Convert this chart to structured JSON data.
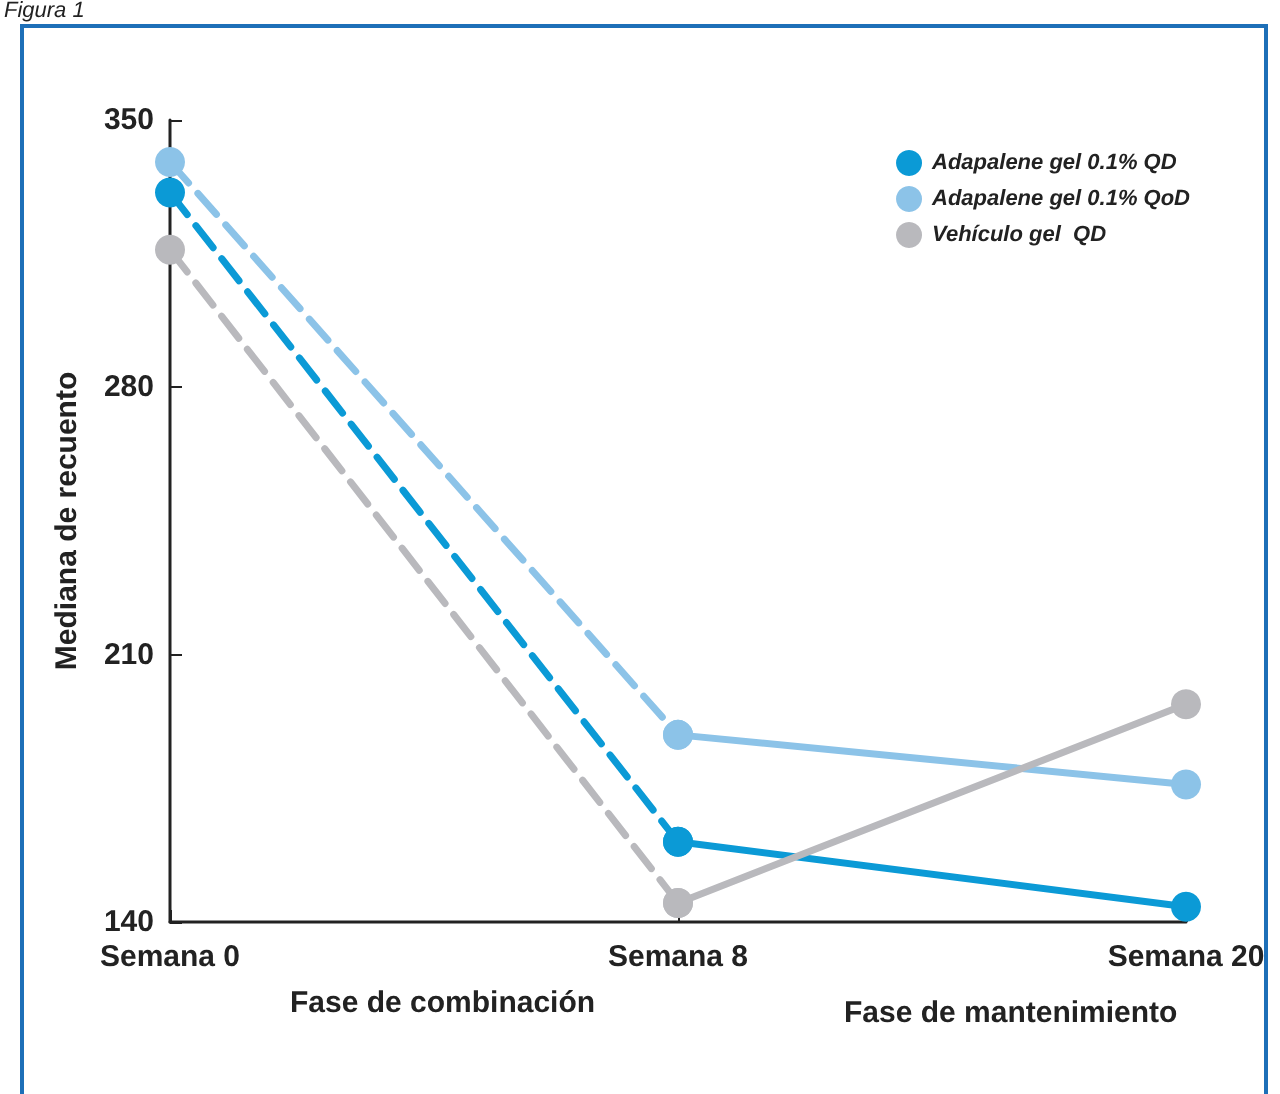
{
  "chart_data": {
    "type": "line",
    "ylabel": "Mediana de recuento",
    "categories": [
      "Semana 0",
      "Semana 8",
      "Semana 20"
    ],
    "series": [
      {
        "name": "Adapalene gel 0.1% QD",
        "color": "#0b9ad6",
        "values": [
          null,
          161,
          144
        ],
        "line_style": "solid"
      },
      {
        "name": "Adapalene gel 0.1% QoD",
        "color": "#8cc3e8",
        "values": [
          null,
          189,
          176
        ],
        "line_style": "solid"
      },
      {
        "name": "Vehículo gel  QD",
        "color": "#b9b9bd",
        "values": [
          null,
          145,
          197
        ],
        "line_style": "solid"
      },
      {
        "color": "#0b9ad6",
        "values": [
          331,
          161,
          null
        ],
        "line_style": "dashed"
      },
      {
        "color": "#8cc3e8",
        "values": [
          339,
          189,
          null
        ],
        "line_style": "dashed"
      },
      {
        "color": "#b9b9bd",
        "values": [
          316,
          145,
          null
        ],
        "line_style": "dashed"
      }
    ],
    "ylim": [
      140,
      350
    ],
    "yticks": [
      140,
      210,
      280,
      350
    ],
    "grid": false,
    "legend": "top right",
    "marker": "circle",
    "annotations": [
      "Figura 1",
      "Fase de combinación",
      "Fase de mantenimiento"
    ]
  }
}
